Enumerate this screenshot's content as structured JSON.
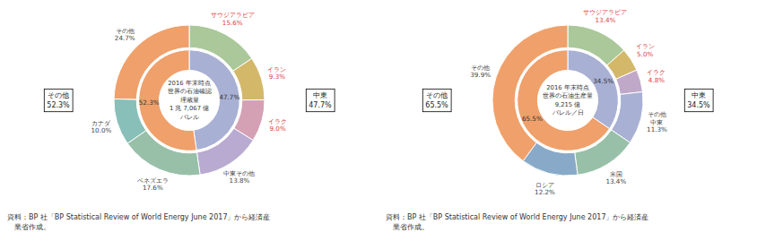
{
  "chart_data": [
    {
      "type": "donut",
      "title": "2016 年末時点\n世界の石油確認\n埋蔵量\n1 兆 7,067 億\nバレル",
      "data_labels": true,
      "series": [
        {
          "categories": [
            "サウジアラビア",
            "イラン",
            "イラク",
            "中東その他",
            "ベネズエラ",
            "カナダ",
            "その他"
          ],
          "values": [
            15.6,
            9.3,
            9.0,
            13.8,
            17.6,
            10.0,
            24.7
          ],
          "value_labels": [
            "15.6%",
            "9.3%",
            "9.0%",
            "13.8%",
            "17.6%",
            "10.0%",
            "24.7%"
          ],
          "colors": [
            "#aac89a",
            "#d4b86a",
            "#d4a0b4",
            "#b8aad0",
            "#98c0a8",
            "#88bfb8",
            "#f0a06a"
          ],
          "label_colors": [
            "#e04040",
            "#e04040",
            "#e04040",
            "#444444",
            "#444444",
            "#444444",
            "#444444"
          ]
        },
        {
          "values": [
            47.7,
            52.3
          ],
          "value_labels": [
            "47.7%",
            "52.3%"
          ],
          "colors": [
            "#a8b0d4",
            "#f0a06a"
          ]
        }
      ],
      "annotations": [
        "その他\n52.3%",
        "中東\n47.7%"
      ],
      "source": "資料：BP 社「BP Statistical Review of World Energy June 2017」から経済産\n　業省作成。"
    },
    {
      "type": "donut",
      "title": "2016 年末時点\n世界の石油生産量\n9,215 億\nバレル／日",
      "data_labels": true,
      "series": [
        {
          "categories": [
            "サウジアラビア",
            "イラン",
            "イラク",
            "その他\n中東",
            "米国",
            "ロシア",
            "その他"
          ],
          "values": [
            13.4,
            5.0,
            4.8,
            11.3,
            13.4,
            12.2,
            39.9
          ],
          "value_labels": [
            "13.4%",
            "5.0%",
            "4.8%",
            "11.3%",
            "13.4%",
            "12.2%",
            "39.9%"
          ],
          "colors": [
            "#aac89a",
            "#d4b86a",
            "#c0a8c8",
            "#a8b0d4",
            "#98c0a8",
            "#88aac8",
            "#f0a06a"
          ],
          "label_colors": [
            "#e04040",
            "#e04040",
            "#e04040",
            "#444444",
            "#444444",
            "#444444",
            "#444444"
          ]
        },
        {
          "values": [
            34.5,
            65.5
          ],
          "value_labels": [
            "34.5%",
            "65.5%"
          ],
          "colors": [
            "#a8b0d4",
            "#f0a06a"
          ]
        }
      ],
      "annotations": [
        "その他\n65.5%",
        "中東\n34.5%"
      ],
      "source": "資料：BP 社「BP Statistical Review of World Energy June 2017」から経済産\n　業省作成。"
    }
  ]
}
